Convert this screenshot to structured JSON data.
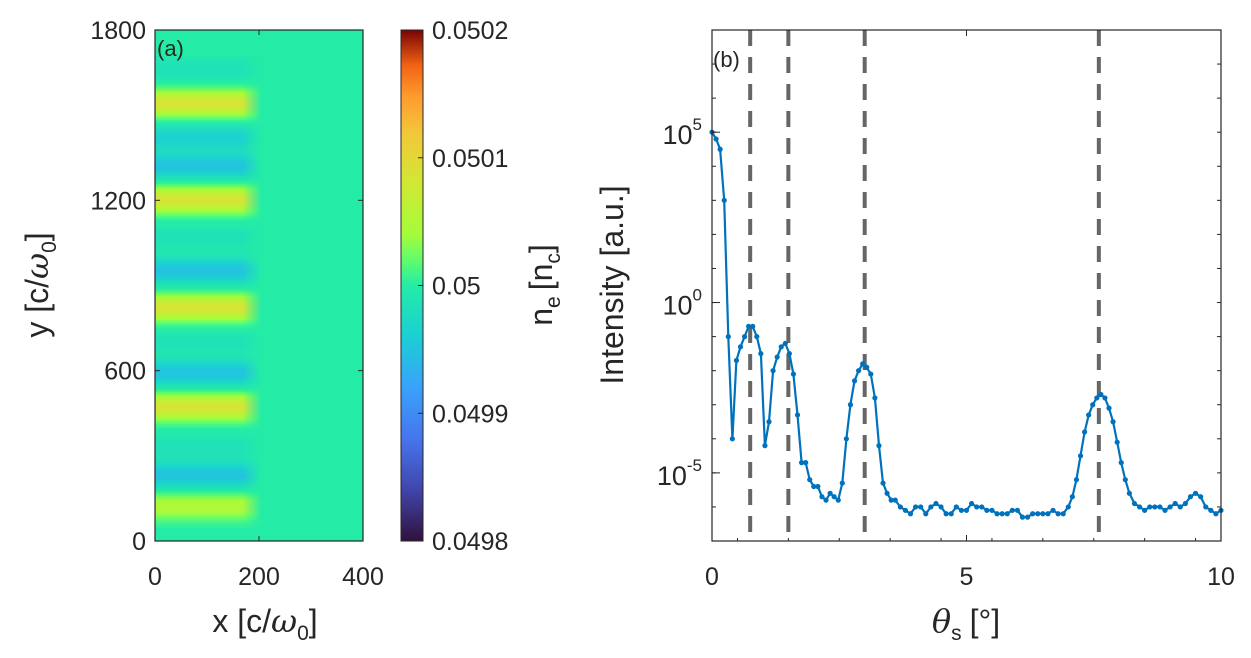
{
  "chart_data": [
    {
      "type": "heatmap",
      "panel_label": "(a)",
      "xlabel": {
        "text": "x [c/",
        "symbol": "ω",
        "sub": "0",
        "close": "]"
      },
      "ylabel": {
        "text": "y [c/",
        "symbol": "ω",
        "sub": "0",
        "close": "]"
      },
      "xlim": [
        0,
        400
      ],
      "ylim": [
        0,
        1800
      ],
      "xticks": [
        "0",
        "200",
        "400"
      ],
      "yticks": [
        "0",
        "600",
        "1200",
        "1800"
      ],
      "background_value": 0.05,
      "modulated_x_range": [
        0,
        190
      ],
      "stripes": [
        {
          "y": 1660,
          "value": 0.049985
        },
        {
          "y": 1540,
          "value": 0.050085
        },
        {
          "y": 1420,
          "value": 0.049965
        },
        {
          "y": 1320,
          "value": 0.04995
        },
        {
          "y": 1200,
          "value": 0.050085
        },
        {
          "y": 1070,
          "value": 0.049985
        },
        {
          "y": 950,
          "value": 0.04995
        },
        {
          "y": 820,
          "value": 0.050085
        },
        {
          "y": 700,
          "value": 0.049985
        },
        {
          "y": 590,
          "value": 0.04995
        },
        {
          "y": 470,
          "value": 0.050085
        },
        {
          "y": 330,
          "value": 0.049985
        },
        {
          "y": 230,
          "value": 0.04995
        },
        {
          "y": 120,
          "value": 0.05005
        }
      ],
      "colorbar": {
        "label": {
          "base": "n",
          "base_sub": "e",
          "unit": "[n",
          "unit_sub": "c",
          "close": "]"
        },
        "range": [
          0.0498,
          0.0502
        ],
        "ticks": [
          "0.0498",
          "0.0499",
          "0.05",
          "0.0501",
          "0.0502"
        ],
        "colormap": "turbo"
      }
    },
    {
      "type": "line",
      "panel_label": "(b)",
      "xlabel": {
        "symbol": "θ",
        "sub": "s",
        "unit": "[°]"
      },
      "ylabel": "Intensity [a.u.]",
      "xlim": [
        0,
        10
      ],
      "ylim_log10": [
        -7,
        8
      ],
      "yscale": "log",
      "xticks": [
        "0",
        "5",
        "10"
      ],
      "yticks": [
        {
          "base": "10",
          "exp": "5",
          "log": 5
        },
        {
          "base": "10",
          "exp": "0",
          "log": 0
        },
        {
          "base": "10",
          "exp": "-5",
          "log": -5
        }
      ],
      "vlines": [
        0.75,
        1.5,
        3.0,
        7.6
      ],
      "series": [
        {
          "name": "intensity",
          "color": "#0072BD",
          "x": [
            0,
            0.08,
            0.16,
            0.24,
            0.32,
            0.4,
            0.48,
            0.56,
            0.64,
            0.72,
            0.8,
            0.88,
            0.96,
            1.04,
            1.12,
            1.2,
            1.28,
            1.36,
            1.44,
            1.52,
            1.6,
            1.68,
            1.76,
            1.84,
            1.92,
            2.0,
            2.08,
            2.16,
            2.24,
            2.32,
            2.4,
            2.48,
            2.56,
            2.64,
            2.72,
            2.8,
            2.88,
            2.96,
            3.04,
            3.12,
            3.2,
            3.28,
            3.36,
            3.44,
            3.52,
            3.6,
            3.7,
            3.8,
            3.9,
            4.0,
            4.1,
            4.2,
            4.3,
            4.4,
            4.5,
            4.6,
            4.7,
            4.8,
            4.9,
            5.0,
            5.1,
            5.2,
            5.3,
            5.4,
            5.5,
            5.6,
            5.7,
            5.8,
            5.9,
            6.0,
            6.1,
            6.2,
            6.3,
            6.4,
            6.5,
            6.6,
            6.7,
            6.8,
            6.9,
            7.0,
            7.08,
            7.16,
            7.24,
            7.32,
            7.4,
            7.48,
            7.56,
            7.64,
            7.72,
            7.8,
            7.88,
            7.96,
            8.04,
            8.12,
            8.2,
            8.3,
            8.4,
            8.5,
            8.6,
            8.7,
            8.8,
            8.9,
            9.0,
            9.1,
            9.2,
            9.3,
            9.4,
            9.5,
            9.6,
            9.7,
            9.8,
            9.9,
            10.0
          ],
          "log10": [
            5.0,
            4.8,
            4.5,
            3.0,
            -1.0,
            -4.0,
            -1.7,
            -1.3,
            -1.0,
            -0.7,
            -0.7,
            -1.0,
            -1.5,
            -4.2,
            -3.5,
            -2.0,
            -1.6,
            -1.3,
            -1.2,
            -1.5,
            -2.1,
            -3.3,
            -4.7,
            -4.7,
            -5.2,
            -5.4,
            -5.4,
            -5.7,
            -5.8,
            -5.6,
            -5.7,
            -5.8,
            -5.3,
            -4.0,
            -3.0,
            -2.3,
            -2.0,
            -1.8,
            -1.9,
            -2.1,
            -2.8,
            -4.2,
            -5.3,
            -5.6,
            -5.8,
            -5.8,
            -6.0,
            -6.1,
            -6.2,
            -6.0,
            -6.0,
            -6.2,
            -6.0,
            -5.9,
            -6.0,
            -6.2,
            -6.2,
            -6.0,
            -6.1,
            -6.1,
            -5.9,
            -6.0,
            -6.0,
            -6.1,
            -6.1,
            -6.2,
            -6.2,
            -6.2,
            -6.1,
            -6.1,
            -6.3,
            -6.3,
            -6.2,
            -6.2,
            -6.2,
            -6.2,
            -6.1,
            -6.2,
            -6.2,
            -6.0,
            -5.7,
            -5.2,
            -4.5,
            -3.8,
            -3.3,
            -3.0,
            -2.8,
            -2.7,
            -2.8,
            -3.1,
            -3.5,
            -4.1,
            -4.7,
            -5.2,
            -5.6,
            -5.9,
            -6.0,
            -6.1,
            -6.0,
            -6.0,
            -6.0,
            -6.1,
            -6.0,
            -5.9,
            -6.0,
            -5.9,
            -5.7,
            -5.6,
            -5.7,
            -6.0,
            -6.1,
            -6.2,
            -6.1
          ]
        }
      ]
    }
  ]
}
